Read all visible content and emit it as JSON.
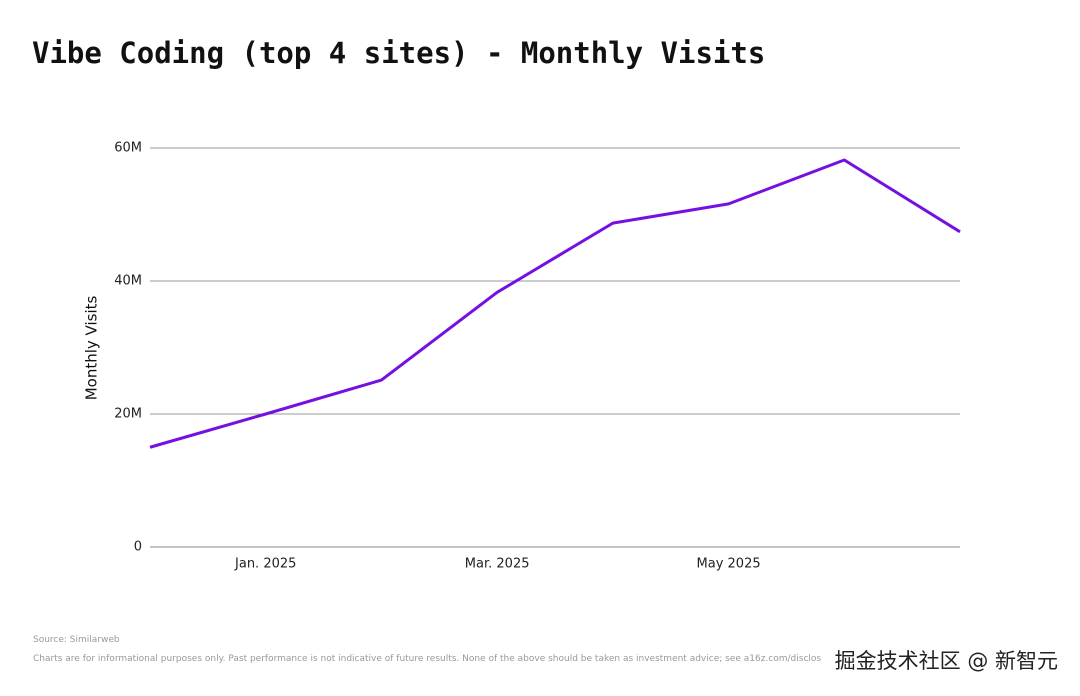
{
  "chart_data": {
    "type": "line",
    "title": "Vibe Coding (top 4 sites) - Monthly Visits",
    "y_label": "Monthly Visits",
    "categories": [
      null,
      "Jan. 2025",
      null,
      "Mar. 2025",
      null,
      "May 2025",
      null,
      null
    ],
    "series": [
      {
        "name": "Monthly Visits",
        "color": "#7510e0",
        "values": [
          15.0,
          20.0,
          25.1,
          38.3,
          48.7,
          51.6,
          58.2,
          47.4
        ]
      }
    ],
    "ylim": [
      0,
      60
    ],
    "yticks": [
      0,
      {
        "value": 20,
        "label": "20M"
      },
      {
        "value": 40,
        "label": "40M"
      },
      {
        "value": 60,
        "label": "60M"
      }
    ],
    "grid": true,
    "source": "Source: Similarweb",
    "disclaimer": "Charts are for informational purposes only. Past performance is not indicative of future results. None of the above should be taken as investment advice; see a16z.com/disclos",
    "watermark": "掘金技术社区 @ 新智元"
  }
}
